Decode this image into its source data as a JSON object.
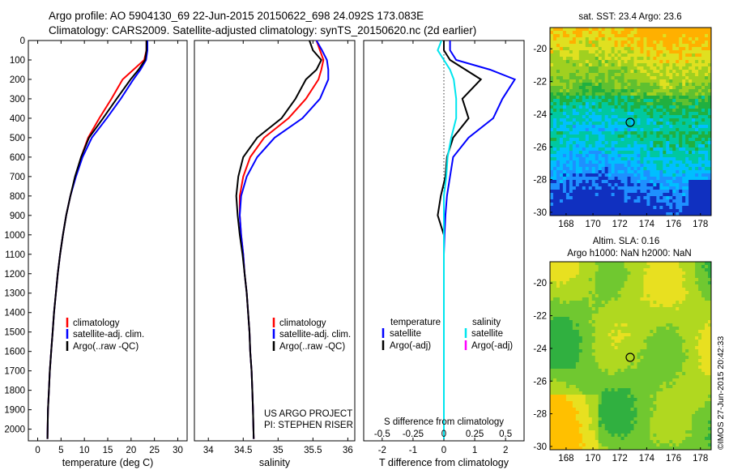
{
  "header": {
    "line1": "Argo profile: AO 5904130_69 22-Jun-2015 20150622_698 24.092S 173.083E",
    "line2": "Climatology: CARS2009. Satellite-adjusted climatology: synTS_20150620.nc (2d earlier)"
  },
  "colors": {
    "climatology": "#ff0000",
    "satellite": "#0000ff",
    "argo": "#000000",
    "salinity_satellite": "#00e5ee",
    "salinity_argo": "#ff00ff",
    "land": "#ffffff"
  },
  "depth_axis": {
    "label": "",
    "ticks": [
      0,
      100,
      200,
      300,
      400,
      500,
      600,
      700,
      800,
      900,
      1000,
      1100,
      1200,
      1300,
      1400,
      1500,
      1600,
      1700,
      1800,
      1900,
      2000
    ],
    "ylim": [
      0,
      2060
    ]
  },
  "footer": {
    "credit": "©IMOS 27-Jun-2015 20:42:33",
    "project": "US ARGO PROJECT",
    "pi": "PI: STEPHEN RISER"
  },
  "chart_data": [
    {
      "type": "line",
      "title": "",
      "xlabel": "temperature (deg C)",
      "ylabel": "",
      "xlim": [
        -2,
        32
      ],
      "ylim": [
        0,
        2060
      ],
      "y_inverted": true,
      "xticks": [
        0,
        5,
        10,
        15,
        20,
        25,
        30
      ],
      "legend": [
        "climatology",
        "satellite-adj. clim.",
        "Argo(..raw -QC)"
      ],
      "legend_position": "bottom-center",
      "series": [
        {
          "name": "climatology",
          "color": "#ff0000",
          "x": [
            23.3,
            23.3,
            22.8,
            20.5,
            18.2,
            15.8,
            13.2,
            10.8,
            9.3,
            8.1,
            7.0,
            6.1,
            5.4,
            4.8,
            4.3,
            3.9,
            3.5,
            3.2,
            2.9,
            2.6,
            2.4,
            2.2,
            2.1
          ],
          "y": [
            0,
            50,
            100,
            150,
            200,
            300,
            400,
            500,
            600,
            700,
            800,
            900,
            1000,
            1100,
            1200,
            1300,
            1400,
            1500,
            1600,
            1700,
            1800,
            1900,
            2050
          ]
        },
        {
          "name": "satellite-adj. clim.",
          "color": "#0000ff",
          "x": [
            23.5,
            23.5,
            23.2,
            22.0,
            20.5,
            17.8,
            14.8,
            11.6,
            9.6,
            8.2,
            7.0,
            6.1,
            5.4,
            4.8,
            4.3,
            3.9,
            3.5,
            3.2,
            2.9,
            2.6,
            2.4,
            2.2,
            2.1
          ],
          "y": [
            0,
            50,
            100,
            150,
            200,
            300,
            400,
            500,
            600,
            700,
            800,
            900,
            1000,
            1100,
            1200,
            1300,
            1400,
            1500,
            1600,
            1700,
            1800,
            1900,
            2050
          ]
        },
        {
          "name": "Argo(..raw -QC)",
          "color": "#000000",
          "x": [
            23.3,
            23.3,
            23.0,
            21.6,
            19.9,
            16.9,
            14.0,
            11.0,
            9.3,
            8.0,
            7.0,
            6.1,
            5.4,
            4.8,
            4.3,
            3.9,
            3.5,
            3.2,
            2.9,
            2.6,
            2.4,
            2.2,
            2.1
          ],
          "y": [
            0,
            50,
            100,
            150,
            200,
            300,
            400,
            500,
            600,
            700,
            800,
            900,
            1000,
            1100,
            1200,
            1300,
            1400,
            1500,
            1600,
            1700,
            1800,
            1900,
            2050
          ]
        }
      ]
    },
    {
      "type": "line",
      "title": "",
      "xlabel": "salinity",
      "ylabel": "",
      "xlim": [
        33.8,
        36.1
      ],
      "ylim": [
        0,
        2060
      ],
      "y_inverted": true,
      "xticks": [
        34,
        34.5,
        35,
        35.5,
        36
      ],
      "legend": [
        "climatology",
        "satellite-adj. clim.",
        "Argo(..raw -QC)"
      ],
      "legend_position": "bottom-center",
      "series": [
        {
          "name": "climatology",
          "color": "#ff0000",
          "x": [
            35.55,
            35.6,
            35.65,
            35.62,
            35.58,
            35.4,
            35.15,
            34.8,
            34.6,
            34.5,
            34.45,
            34.45,
            34.47,
            34.5,
            34.52,
            34.55,
            34.57,
            34.59,
            34.6,
            34.62,
            34.63,
            34.64,
            34.65
          ],
          "y": [
            0,
            50,
            100,
            150,
            200,
            300,
            400,
            500,
            600,
            700,
            800,
            900,
            1000,
            1100,
            1200,
            1300,
            1400,
            1500,
            1600,
            1700,
            1800,
            1900,
            2050
          ]
        },
        {
          "name": "satellite-adj. clim.",
          "color": "#0000ff",
          "x": [
            35.55,
            35.63,
            35.7,
            35.72,
            35.72,
            35.6,
            35.35,
            34.95,
            34.7,
            34.55,
            34.47,
            34.45,
            34.47,
            34.5,
            34.52,
            34.55,
            34.57,
            34.59,
            34.6,
            34.62,
            34.63,
            34.64,
            34.65
          ],
          "y": [
            0,
            50,
            100,
            150,
            200,
            300,
            400,
            500,
            600,
            700,
            800,
            900,
            1000,
            1100,
            1200,
            1300,
            1400,
            1500,
            1600,
            1700,
            1800,
            1900,
            2050
          ]
        },
        {
          "name": "Argo(..raw -QC)",
          "color": "#000000",
          "x": [
            35.45,
            35.5,
            35.62,
            35.55,
            35.4,
            35.25,
            35.05,
            34.7,
            34.5,
            34.43,
            34.4,
            34.42,
            34.45,
            34.49,
            34.52,
            34.55,
            34.57,
            34.59,
            34.6,
            34.62,
            34.63,
            34.64,
            34.65
          ],
          "y": [
            0,
            50,
            100,
            150,
            200,
            300,
            400,
            500,
            600,
            700,
            800,
            900,
            1000,
            1100,
            1200,
            1300,
            1400,
            1500,
            1600,
            1700,
            1800,
            1900,
            2050
          ]
        }
      ]
    },
    {
      "type": "line",
      "title": "",
      "xlabel": "T difference from climatology",
      "x2label": "S difference from climatology",
      "ylabel": "",
      "xlim": [
        -2.6,
        2.6
      ],
      "x2lim": [
        -0.65,
        0.65
      ],
      "ylim": [
        0,
        2060
      ],
      "y_inverted": true,
      "xticks": [
        -2,
        -1,
        0,
        1,
        2
      ],
      "x2ticks": [
        -0.5,
        -0.25,
        0,
        0.25,
        0.5
      ],
      "x2ticklabels": [
        "-0.5",
        "-0.25",
        "0",
        "0.25",
        "0.5"
      ],
      "legend_groups": [
        {
          "title": "temperature",
          "items": [
            "satellite",
            "Argo(-adj)"
          ]
        },
        {
          "title": "salinity",
          "items": [
            "satellite",
            "Argo(-adj)"
          ]
        }
      ],
      "legend_position": "bottom-center",
      "series": [
        {
          "name": "temperature satellite",
          "color": "#0000ff",
          "x": [
            0.2,
            0.2,
            0.4,
            1.5,
            2.3,
            1.9,
            1.6,
            0.8,
            0.3,
            0.2,
            0.1,
            0.05,
            0.02,
            0.0,
            0.0,
            0.0,
            0.0,
            0.0,
            0.0,
            0.0,
            0.0,
            0.0
          ],
          "y": [
            0,
            50,
            100,
            150,
            200,
            300,
            400,
            500,
            600,
            700,
            800,
            900,
            1000,
            1100,
            1200,
            1300,
            1400,
            1500,
            1600,
            1700,
            1800,
            2050
          ]
        },
        {
          "name": "temperature Argo(-adj)",
          "color": "#000000",
          "x": [
            0.0,
            0.0,
            0.2,
            0.7,
            1.2,
            0.6,
            0.8,
            0.3,
            0.1,
            0.05,
            -0.1,
            -0.2,
            0.0,
            0.0,
            0.0,
            0.0,
            0.0,
            0.0,
            0.0,
            0.0,
            0.0,
            0.0
          ],
          "y": [
            0,
            50,
            100,
            150,
            200,
            300,
            400,
            500,
            600,
            700,
            800,
            900,
            1000,
            1100,
            1200,
            1300,
            1400,
            1500,
            1600,
            1700,
            1800,
            2050
          ]
        },
        {
          "name": "salinity satellite",
          "color": "#00e5ee",
          "x": [
            -0.02,
            -0.05,
            0.0,
            0.05,
            0.08,
            0.1,
            0.1,
            0.06,
            0.03,
            0.02,
            0.0,
            0.0,
            0.0,
            0.0,
            0.0,
            0.0,
            0.0,
            0.0,
            0.0,
            0.0,
            0.0,
            0.0
          ],
          "y": [
            0,
            50,
            100,
            150,
            200,
            300,
            400,
            500,
            600,
            700,
            800,
            900,
            1000,
            1100,
            1200,
            1300,
            1400,
            1500,
            1600,
            1700,
            1800,
            2050
          ]
        }
      ]
    },
    {
      "type": "heatmap",
      "title": "sat. SST: 23.4  Argo: 23.6",
      "xticks": [
        168,
        170,
        172,
        174,
        176,
        178
      ],
      "yticks": [
        -20,
        -22,
        -24,
        -26,
        -28,
        -30
      ],
      "xlim": [
        166.8,
        178.8
      ],
      "ylim": [
        -30.2,
        -18.7
      ],
      "marker": {
        "lon": 173.083,
        "lat": -24.092
      },
      "colors": [
        "#1030c0",
        "#1e90ff",
        "#00bfff",
        "#00c8a0",
        "#20b040",
        "#5fc030",
        "#a0d020",
        "#e0e020",
        "#ffb000"
      ]
    },
    {
      "type": "heatmap",
      "title_line1": "Altim. SLA: 0.16",
      "title_line2": "Argo h1000: NaN h2000: NaN",
      "xticks": [
        168,
        170,
        172,
        174,
        176,
        178
      ],
      "yticks": [
        -20,
        -22,
        -24,
        -26,
        -28,
        -30
      ],
      "xlim": [
        166.8,
        178.8
      ],
      "ylim": [
        -30.2,
        -18.7
      ],
      "marker": {
        "lon": 173.083,
        "lat": -24.092
      },
      "colors": [
        "#30b040",
        "#70c830",
        "#b0d820",
        "#e8e020",
        "#ffc000"
      ]
    }
  ]
}
